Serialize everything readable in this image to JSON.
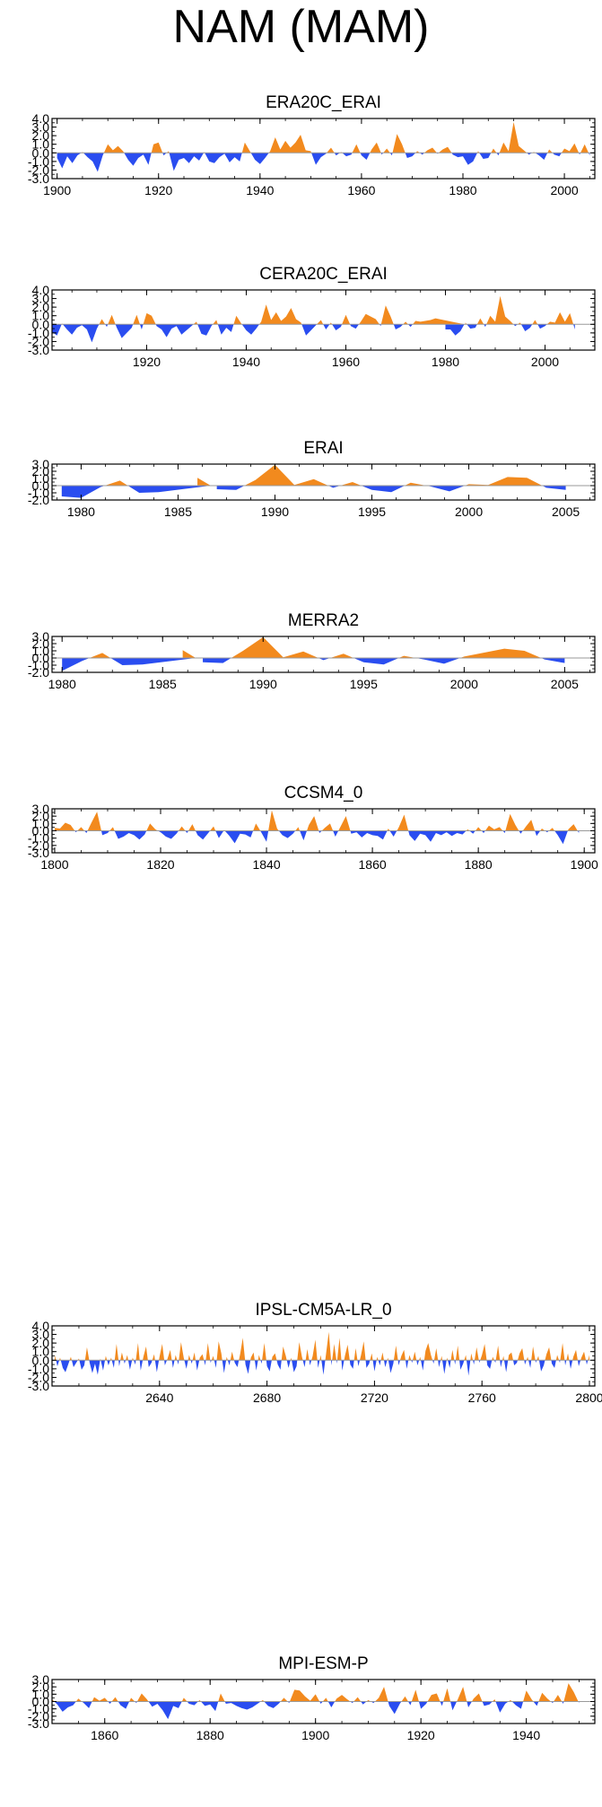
{
  "page": {
    "title": "NAM (MAM)"
  },
  "colors": {
    "positive": "#f28a1e",
    "negative": "#2a4df0",
    "axis": "#000000",
    "zero": "#9a9a9a"
  },
  "chart_data": [
    {
      "type": "area",
      "title": "ERA20C_ERAI",
      "xlim": [
        1899,
        2006
      ],
      "ylim": [
        -3.0,
        4.0
      ],
      "yticks": [
        "4.0",
        "3.0",
        "2.0",
        "1.0",
        "0.0",
        "-1.0",
        "-2.0",
        "-3.0"
      ],
      "xticks": [
        "1900",
        "1920",
        "1940",
        "1960",
        "1980",
        "2000"
      ],
      "x_start": 1900,
      "values": [
        -0.6,
        -1.8,
        -0.4,
        -1.2,
        -0.3,
        0.1,
        -0.5,
        -1.0,
        -2.2,
        -0.3,
        1.0,
        0.3,
        0.8,
        0.2,
        -0.8,
        -1.5,
        -0.6,
        -0.2,
        -1.4,
        1.0,
        1.2,
        -0.3,
        0.2,
        -2.1,
        -0.8,
        -0.6,
        -1.2,
        -0.4,
        -0.9,
        0.1,
        -1.0,
        -1.2,
        -0.5,
        -0.1,
        -1.1,
        -0.5,
        -1.0,
        1.2,
        0.2,
        -0.8,
        -1.3,
        -0.6,
        0.2,
        1.8,
        0.4,
        1.4,
        0.6,
        1.2,
        2.1,
        0.3,
        0.2,
        -1.4,
        -0.5,
        -0.1,
        0.6,
        -0.3,
        0.1,
        -0.4,
        -0.2,
        1.0,
        -0.3,
        -0.8,
        0.4,
        1.2,
        -0.2,
        0.5,
        -0.3,
        2.2,
        1.0,
        -0.6,
        -0.4,
        0.2,
        -0.2,
        0.3,
        0.6,
        -0.1,
        0.4,
        0.7,
        -0.2,
        -0.5,
        -0.4,
        -1.4,
        -1.0,
        0.2,
        -0.7,
        -0.6,
        0.5,
        -0.3,
        1.2,
        0.2,
        3.6,
        0.8,
        0.3,
        -0.2,
        0.1,
        -0.3,
        -0.8,
        0.4,
        -0.2,
        -0.4,
        0.5,
        0.2,
        1.1,
        -0.2,
        1.0,
        -0.3
      ]
    },
    {
      "type": "area",
      "title": "CERA20C_ERAI",
      "xlim": [
        1901,
        2010
      ],
      "ylim": [
        -3.0,
        4.0
      ],
      "yticks": [
        "4.0",
        "3.0",
        "2.0",
        "1.0",
        "0.0",
        "-1.0",
        "-2.0",
        "-3.0"
      ],
      "xticks": [
        "1920",
        "1940",
        "1960",
        "1980",
        "2000"
      ],
      "x_start": 1901,
      "values": [
        -0.9,
        -1.3,
        0.1,
        -0.6,
        -1.2,
        -0.4,
        -0.1,
        -0.6,
        -2.1,
        -0.5,
        0.6,
        -0.3,
        1.1,
        -0.4,
        -1.6,
        -1.0,
        -0.4,
        1.1,
        -0.6,
        1.3,
        1.0,
        -0.2,
        -0.6,
        -1.5,
        -0.5,
        -0.2,
        -1.2,
        -0.7,
        -0.2,
        0.3,
        -1.1,
        -1.3,
        -0.2,
        0.5,
        -1.2,
        -0.4,
        -0.9,
        1.0,
        0.1,
        -0.7,
        -1.2,
        -0.5,
        0.3,
        2.3,
        0.5,
        1.4,
        0.4,
        0.9,
        1.9,
        0.6,
        0.2,
        -1.3,
        -0.7,
        -0.1,
        0.5,
        -0.6,
        0.2,
        -0.7,
        -0.3,
        1.1,
        -0.2,
        -0.5,
        0.3,
        1.2,
        0.9,
        0.6,
        -0.2,
        2.2,
        0.9,
        -0.6,
        -0.3,
        0.3,
        -0.3,
        0.4,
        0.3,
        0.0,
        0.5,
        0.7,
        0.0,
        -0.6,
        -0.6,
        -1.3,
        -0.8,
        0.2,
        -0.5,
        -0.4,
        0.7,
        -0.3,
        1.0,
        0.3,
        3.3,
        0.9,
        0.4,
        -0.2,
        0.2,
        -0.8,
        -0.4,
        0.5,
        -0.5,
        -0.2,
        0.3,
        0.2,
        1.4,
        0.3,
        1.3,
        -0.6
      ]
    },
    {
      "type": "area",
      "title": "ERAI",
      "xlim": [
        1978.5,
        2006.5
      ],
      "ylim": [
        -2.0,
        3.0
      ],
      "yticks": [
        "3.0",
        "2.0",
        "1.0",
        "0.0",
        "-1.0",
        "-2.0"
      ],
      "xticks": [
        "1980",
        "1985",
        "1990",
        "1995",
        "2000",
        "2005"
      ],
      "x_start": 1979,
      "values": [
        -1.5,
        -1.7,
        -0.2,
        0.7,
        -1.0,
        -0.9,
        0.0,
        1.1,
        -0.5,
        -0.6,
        0.8,
        2.9,
        0.1,
        0.9,
        -0.3,
        0.5,
        -0.6,
        -0.9,
        0.4,
        -0.1,
        -0.8,
        0.2,
        0.1,
        1.2,
        1.1,
        -0.3,
        -0.6
      ]
    },
    {
      "type": "area",
      "title": "MERRA2",
      "xlim": [
        1979.5,
        2006.5
      ],
      "ylim": [
        -2.0,
        3.0
      ],
      "yticks": [
        "3.0",
        "2.0",
        "1.0",
        "0.0",
        "-1.0",
        "-2.0"
      ],
      "xticks": [
        "1980",
        "1985",
        "1990",
        "1995",
        "2000",
        "2005"
      ],
      "x_start": 1980,
      "values": [
        -1.8,
        -0.4,
        0.7,
        -1.0,
        -0.9,
        0.0,
        1.1,
        -0.6,
        -0.7,
        1.0,
        2.9,
        0.1,
        0.9,
        -0.3,
        0.6,
        -0.6,
        -0.9,
        0.3,
        -0.2,
        -0.8,
        0.2,
        0.0,
        1.3,
        1.0,
        -0.2,
        -0.7
      ]
    },
    {
      "type": "area",
      "title": "CCSM4_0",
      "xlim": [
        1799.5,
        1902
      ],
      "ylim": [
        -3.0,
        3.0
      ],
      "yticks": [
        "3.0",
        "2.0",
        "1.0",
        "0.0",
        "-1.0",
        "-2.0",
        "-3.0"
      ],
      "xticks": [
        "1800",
        "1820",
        "1840",
        "1860",
        "1880",
        "1900"
      ],
      "x_start": 1800,
      "values": [
        0.4,
        0.3,
        1.1,
        0.8,
        -0.2,
        0.5,
        -0.3,
        1.2,
        2.6,
        -0.6,
        -0.3,
        0.5,
        -1.1,
        -0.8,
        -0.3,
        -0.6,
        -1.2,
        -0.5,
        1.0,
        0.2,
        -0.2,
        -0.8,
        -1.1,
        -0.4,
        0.6,
        -0.3,
        0.9,
        -0.6,
        -1.2,
        -0.3,
        0.6,
        -1.0,
        0.1,
        -0.7,
        -1.7,
        -0.4,
        -0.5,
        -0.9,
        1.0,
        -0.2,
        -1.5,
        2.8,
        0.3,
        -0.6,
        -1.0,
        -0.4,
        0.5,
        -1.3,
        0.8,
        2.0,
        -0.3,
        0.4,
        1.0,
        -0.8,
        0.6,
        2.0,
        -0.4,
        -0.2,
        -0.9,
        -0.3,
        -0.6,
        -0.7,
        -1.2,
        0.3,
        -0.8,
        0.5,
        2.2,
        -0.6,
        -1.4,
        -0.4,
        -0.6,
        -1.5,
        -0.3,
        -0.6,
        -0.2,
        -0.7,
        -0.3,
        -0.5,
        0.2,
        -0.4,
        0.5,
        -0.3,
        0.7,
        0.2,
        0.5,
        -0.3,
        2.3,
        0.8,
        -0.4,
        0.6,
        1.5,
        -0.7,
        0.3,
        -0.2,
        0.4,
        -0.6,
        -1.8,
        0.2,
        0.9,
        -0.3
      ]
    },
    {
      "type": "area",
      "title": "IPSL-CM5A-LR_0",
      "xlim": [
        2600,
        2802
      ],
      "ylim": [
        -3.0,
        4.0
      ],
      "yticks": [
        "4.0",
        "3.0",
        "2.0",
        "1.0",
        "0.0",
        "-1.0",
        "-2.0",
        "-3.0"
      ],
      "xticks": [
        "2640",
        "2680",
        "2720",
        "2760",
        "2800"
      ],
      "x_start": 2601,
      "values": [
        0.6,
        -0.7,
        0.3,
        -0.9,
        -1.4,
        -0.5,
        0.4,
        -0.8,
        -0.3,
        0.2,
        -1.1,
        -0.6,
        1.5,
        -0.3,
        -1.5,
        -0.4,
        -1.7,
        0.2,
        -1.2,
        0.5,
        -0.6,
        0.3,
        -0.9,
        1.9,
        -0.7,
        0.9,
        -0.4,
        0.6,
        -1.1,
        0.3,
        -0.5,
        2.0,
        -1.2,
        0.4,
        1.6,
        -0.8,
        -0.3,
        0.7,
        -1.4,
        0.4,
        1.9,
        -0.6,
        0.2,
        1.2,
        -0.9,
        0.6,
        -0.5,
        2.1,
        0.3,
        -1.0,
        0.6,
        -0.4,
        0.9,
        -1.2,
        0.3,
        0.7,
        -0.6,
        2.0,
        -0.3,
        0.5,
        -0.9,
        2.2,
        0.8,
        -1.5,
        0.4,
        -0.6,
        1.0,
        -0.3,
        -0.8,
        0.7,
        2.6,
        -0.5,
        -1.6,
        0.3,
        0.9,
        -1.2,
        0.6,
        -0.4,
        2.0,
        -0.7,
        -1.3,
        0.4,
        0.8,
        -0.5,
        -1.1,
        1.6,
        0.5,
        -0.9,
        0.3,
        -1.4,
        -0.7,
        2.1,
        0.4,
        -0.8,
        1.3,
        -0.6,
        0.5,
        2.4,
        -0.9,
        0.6,
        -1.7,
        0.8,
        3.3,
        -0.6,
        1.9,
        -0.4,
        2.6,
        -1.2,
        0.5,
        1.8,
        -0.5,
        -1.0,
        1.4,
        -0.7,
        0.6,
        2.2,
        -0.9,
        -0.4,
        0.8,
        -1.3,
        0.4,
        -0.6,
        0.9,
        -0.8,
        0.3,
        -1.5,
        -0.4,
        1.7,
        -0.6,
        0.5,
        1.2,
        -1.0,
        0.6,
        -0.3,
        1.0,
        -0.6,
        0.4,
        -1.2,
        1.1,
        2.0,
        0.6,
        -0.4,
        1.4,
        -0.8,
        0.5,
        -1.6,
        0.3,
        -0.9,
        1.2,
        -0.5,
        1.7,
        -1.1,
        -0.4,
        0.6,
        -1.8,
        0.8,
        -0.5,
        1.5,
        -0.3,
        0.6,
        1.9,
        -0.6,
        -1.0,
        0.4,
        -0.3,
        1.7,
        -0.8,
        0.5,
        -1.4,
        0.6,
        0.9,
        -0.6,
        -0.3,
        0.8,
        1.4,
        -0.5,
        0.4,
        -0.9,
        1.6,
        -0.3,
        0.5,
        -1.3,
        -0.6,
        0.7,
        1.5,
        -0.4,
        -0.9,
        0.6,
        -0.3,
        2.0,
        -0.6,
        0.8,
        -1.0,
        0.4,
        1.2,
        -0.7,
        0.3,
        1.0,
        -0.5,
        0.6
      ]
    },
    {
      "type": "area",
      "title": "MPI-ESM-P",
      "xlim": [
        1850,
        1953
      ],
      "ylim": [
        -3.0,
        3.0
      ],
      "yticks": [
        "3.0",
        "2.0",
        "1.0",
        "0.0",
        "-1.0",
        "-2.0",
        "-3.0"
      ],
      "xticks": [
        "1860",
        "1880",
        "1900",
        "1920",
        "1940"
      ],
      "x_start": 1850,
      "values": [
        0.3,
        -0.4,
        -1.4,
        -0.8,
        -0.5,
        0.4,
        -0.2,
        -0.9,
        0.6,
        0.1,
        0.5,
        -0.3,
        0.6,
        -0.5,
        -1.0,
        0.5,
        -0.2,
        1.1,
        0.3,
        -0.7,
        -0.3,
        -1.2,
        -2.4,
        -0.6,
        -0.9,
        0.5,
        -0.3,
        -0.5,
        0.2,
        -0.6,
        -0.4,
        -1.3,
        1.1,
        -0.3,
        -0.2,
        -0.6,
        -0.9,
        -1.1,
        -0.8,
        -0.3,
        0.2,
        -0.6,
        -0.9,
        -0.3,
        0.5,
        -0.2,
        1.6,
        1.5,
        0.7,
        0.1,
        1.0,
        -0.3,
        0.5,
        -0.8,
        0.4,
        0.9,
        0.3,
        -0.2,
        0.6,
        -0.4,
        0.2,
        -0.2,
        0.5,
        2.0,
        -0.6,
        -1.7,
        -0.3,
        0.7,
        -0.5,
        1.6,
        -1.0,
        -0.3,
        0.9,
        1.1,
        -0.6,
        1.8,
        -1.2,
        0.3,
        2.0,
        -0.8,
        0.4,
        1.1,
        -0.6,
        -0.4,
        0.3,
        -1.5,
        -0.3,
        0.2,
        -0.5,
        -1.0,
        1.5,
        0.3,
        -0.6,
        1.2,
        0.4,
        -0.2,
        0.9,
        -0.3,
        2.5,
        1.3,
        -0.2
      ]
    }
  ]
}
